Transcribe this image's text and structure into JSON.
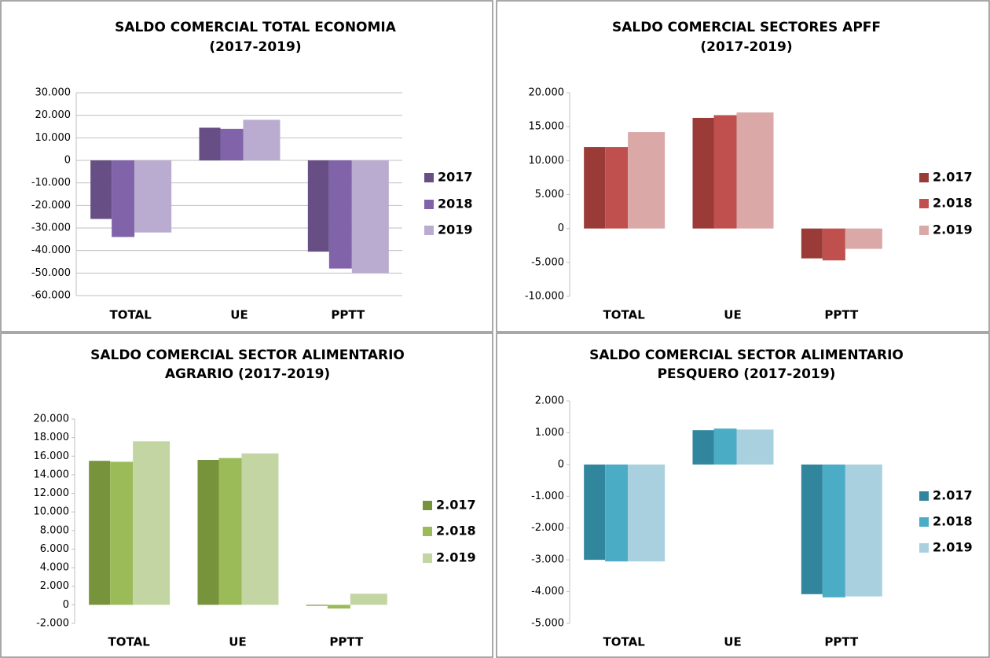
{
  "chart_data": [
    {
      "type": "bar",
      "title": [
        "SALDO COMERCIAL TOTAL ECONOMIA",
        "(2017-2019)"
      ],
      "categories": [
        "TOTAL",
        "UE",
        "PPTT"
      ],
      "series": [
        {
          "name": "2017",
          "color": "#674f86",
          "values": [
            -26000,
            14500,
            -40500
          ]
        },
        {
          "name": "2018",
          "color": "#8063a8",
          "values": [
            -34000,
            14000,
            -48000
          ]
        },
        {
          "name": "2019",
          "color": "#b9acd0",
          "values": [
            -32000,
            18000,
            -50000
          ]
        }
      ],
      "ylim": [
        -60000,
        30000
      ],
      "yticks": [
        {
          "value": -60000,
          "label": "-60.000"
        },
        {
          "value": -50000,
          "label": "-50.000"
        },
        {
          "value": -40000,
          "label": "-40.000"
        },
        {
          "value": -30000,
          "label": "-30.000"
        },
        {
          "value": -20000,
          "label": "-20.000"
        },
        {
          "value": -10000,
          "label": "-10.000"
        },
        0,
        {
          "value": 10000,
          "label": "10.000"
        },
        {
          "value": 20000,
          "label": "20.000"
        },
        {
          "value": 30000,
          "label": "30.000"
        }
      ],
      "grid": true,
      "legend": "right"
    },
    {
      "type": "bar",
      "title": [
        "SALDO COMERCIAL SECTORES APFF",
        "(2017-2019)"
      ],
      "categories": [
        "TOTAL",
        "UE",
        "PPTT"
      ],
      "series": [
        {
          "name": "2.017",
          "color": "#9b3b38",
          "values": [
            12000,
            16300,
            -4400
          ]
        },
        {
          "name": "2.018",
          "color": "#c0504d",
          "values": [
            12000,
            16700,
            -4700
          ]
        },
        {
          "name": "2.019",
          "color": "#d9a8a7",
          "values": [
            14200,
            17100,
            -3000
          ]
        }
      ],
      "ylim": [
        -10000,
        20000
      ],
      "yticks": [
        {
          "value": -10000,
          "label": "-10.000"
        },
        {
          "value": -5000,
          "label": "-5.000"
        },
        0,
        {
          "value": 5000,
          "label": "5.000"
        },
        {
          "value": 10000,
          "label": "10.000"
        },
        {
          "value": 15000,
          "label": "15.000"
        },
        {
          "value": 20000,
          "label": "20.000"
        }
      ],
      "grid": false,
      "legend": "right"
    },
    {
      "type": "bar",
      "title": [
        "SALDO COMERCIAL SECTOR ALIMENTARIO",
        "AGRARIO (2017-2019)"
      ],
      "categories": [
        "TOTAL",
        "UE",
        "PPTT"
      ],
      "series": [
        {
          "name": "2.017",
          "color": "#77933c",
          "values": [
            15500,
            15600,
            -100
          ]
        },
        {
          "name": "2.018",
          "color": "#9bbb59",
          "values": [
            15400,
            15800,
            -400
          ]
        },
        {
          "name": "2.019",
          "color": "#c3d5a3",
          "values": [
            17600,
            16300,
            1200
          ]
        }
      ],
      "ylim": [
        -2000,
        20000
      ],
      "yticks": [
        {
          "value": -2000,
          "label": "-2.000"
        },
        0,
        {
          "value": 2000,
          "label": "2.000"
        },
        {
          "value": 4000,
          "label": "4.000"
        },
        {
          "value": 6000,
          "label": "6.000"
        },
        {
          "value": 8000,
          "label": "8.000"
        },
        {
          "value": 10000,
          "label": "10.000"
        },
        {
          "value": 12000,
          "label": "12.000"
        },
        {
          "value": 14000,
          "label": "14.000"
        },
        {
          "value": 16000,
          "label": "16.000"
        },
        {
          "value": 18000,
          "label": "18.000"
        },
        {
          "value": 20000,
          "label": "20.000"
        }
      ],
      "grid": false,
      "legend": "right"
    },
    {
      "type": "bar",
      "title": [
        "SALDO COMERCIAL SECTOR ALIMENTARIO",
        "PESQUERO (2017-2019)"
      ],
      "categories": [
        "TOTAL",
        "UE",
        "PPTT"
      ],
      "series": [
        {
          "name": "2.017",
          "color": "#31859c",
          "values": [
            -3000,
            1080,
            -4080
          ]
        },
        {
          "name": "2.018",
          "color": "#4bacc6",
          "values": [
            -3050,
            1130,
            -4180
          ]
        },
        {
          "name": "2.019",
          "color": "#a9d0de",
          "values": [
            -3050,
            1100,
            -4150
          ]
        }
      ],
      "ylim": [
        -5000,
        2000
      ],
      "yticks": [
        {
          "value": -5000,
          "label": "-5.000"
        },
        {
          "value": -4000,
          "label": "-4.000"
        },
        {
          "value": -3000,
          "label": "-3.000"
        },
        {
          "value": -2000,
          "label": "-2.000"
        },
        {
          "value": -1000,
          "label": "-1.000"
        },
        0,
        {
          "value": 1000,
          "label": "1.000"
        },
        {
          "value": 2000,
          "label": "2.000"
        }
      ],
      "grid": false,
      "legend": "right"
    }
  ]
}
